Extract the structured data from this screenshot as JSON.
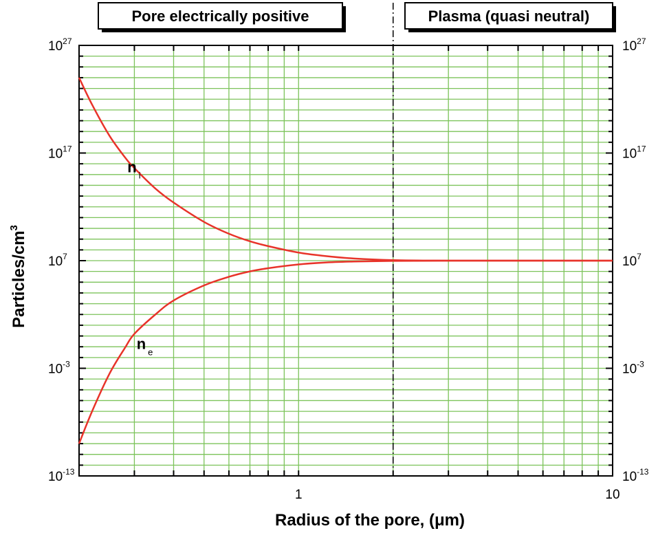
{
  "chart_data": {
    "type": "line",
    "xlabel": "Radius of the pore, (μm)",
    "ylabel": "Particles/cm",
    "ylabel_sup": "3",
    "xscale": "log",
    "yscale": "log",
    "xlim": [
      0.2,
      10
    ],
    "ylim_exponents": [
      -13,
      27
    ],
    "grid": true,
    "x_ticks": [
      {
        "value": 1,
        "label": "1"
      },
      {
        "value": 10,
        "label": "10"
      }
    ],
    "y_ticks": [
      {
        "exp": 27,
        "base": "10",
        "sup": "27"
      },
      {
        "exp": 17,
        "base": "10",
        "sup": "17"
      },
      {
        "exp": 7,
        "base": "10",
        "sup": "7"
      },
      {
        "exp": -3,
        "base": "10",
        "sup": "-3"
      },
      {
        "exp": -13,
        "base": "10",
        "sup": "-13"
      }
    ],
    "regions": [
      {
        "label": "Pore electrically  positive",
        "x_from": 0.2,
        "x_to": 2
      },
      {
        "label": "Plasma (quasi neutral)",
        "x_from": 2,
        "x_to": 10
      }
    ],
    "boundary_x": 2,
    "series": [
      {
        "name": "n",
        "subscript": "i",
        "color": "#e8332a",
        "x": [
          0.2,
          0.22,
          0.25,
          0.28,
          0.3,
          0.35,
          0.4,
          0.5,
          0.6,
          0.7,
          0.8,
          1.0,
          1.2,
          1.5,
          2.0,
          3.0,
          5.0,
          10.0
        ],
        "log10_y": [
          24.0,
          21.5,
          18.6,
          16.6,
          15.6,
          13.7,
          12.4,
          10.6,
          9.5,
          8.8,
          8.35,
          7.75,
          7.45,
          7.2,
          7.05,
          7.0,
          7.0,
          7.0
        ]
      },
      {
        "name": "n",
        "subscript": "e",
        "color": "#e8332a",
        "x": [
          0.2,
          0.22,
          0.25,
          0.28,
          0.3,
          0.35,
          0.4,
          0.5,
          0.6,
          0.7,
          0.8,
          1.0,
          1.2,
          1.5,
          2.0,
          3.0,
          5.0,
          10.0
        ],
        "log10_y": [
          -10.0,
          -7.0,
          -3.5,
          -1.1,
          0.2,
          2.0,
          3.3,
          4.7,
          5.5,
          6.0,
          6.3,
          6.65,
          6.82,
          6.92,
          6.98,
          7.0,
          7.0,
          7.0
        ]
      }
    ]
  }
}
